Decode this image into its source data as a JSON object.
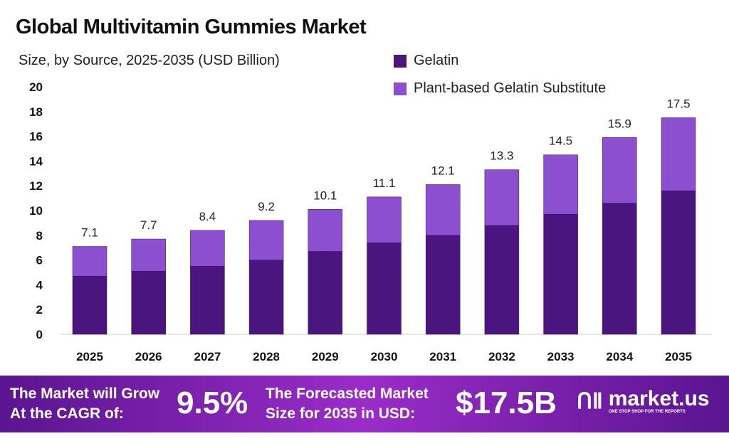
{
  "chart_data": {
    "type": "bar",
    "stacked": true,
    "title": "Global Multivitamin Gummies Market",
    "subtitle": "Size, by Source, 2025-2035 (USD Billion)",
    "categories": [
      "2025",
      "2026",
      "2027",
      "2028",
      "2029",
      "2030",
      "2031",
      "2032",
      "2033",
      "2034",
      "2035"
    ],
    "series": [
      {
        "name": "Gelatin",
        "color": "#4b1580",
        "values": [
          4.7,
          5.1,
          5.5,
          6.0,
          6.7,
          7.4,
          8.0,
          8.8,
          9.7,
          10.6,
          11.6
        ]
      },
      {
        "name": "Plant-based Gelatin Substitute",
        "color": "#8c4fd0",
        "values": [
          2.4,
          2.6,
          2.9,
          3.2,
          3.4,
          3.7,
          4.1,
          4.5,
          4.8,
          5.3,
          5.9
        ]
      }
    ],
    "totals": [
      "7.1",
      "7.7",
      "8.4",
      "9.2",
      "10.1",
      "11.1",
      "12.1",
      "13.3",
      "14.5",
      "15.9",
      "17.5"
    ],
    "yticks": [
      "0",
      "2",
      "4",
      "6",
      "8",
      "10",
      "12",
      "14",
      "16",
      "18",
      "20"
    ],
    "ylim": [
      0,
      20
    ],
    "legend": "top-right",
    "grid": false
  },
  "footer": {
    "cagr_label_1": "The Market will Grow",
    "cagr_label_2": "At the CAGR of:",
    "cagr_value": "9.5%",
    "forecast_label_1": "The Forecasted Market",
    "forecast_label_2": "Size for 2035 in USD:",
    "forecast_value": "$17.5B",
    "brand": "market.us",
    "tagline": "ONE STOP SHOP FOR THE REPORTS"
  }
}
